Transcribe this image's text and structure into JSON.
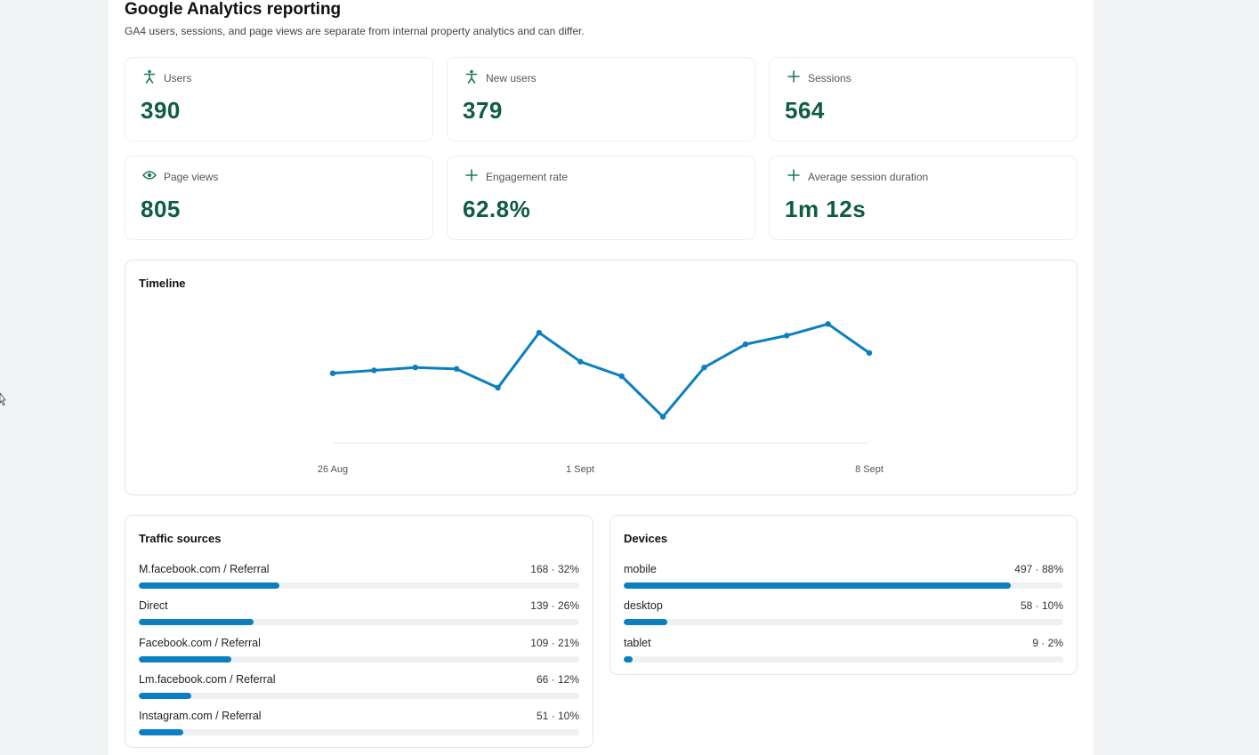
{
  "header": {
    "title": "Google Analytics reporting",
    "subtitle": "GA4 users, sessions, and page views are separate from internal property analytics and can differ."
  },
  "kpis": [
    {
      "label": "Users",
      "value": "390",
      "icon": "person-icon"
    },
    {
      "label": "New users",
      "value": "379",
      "icon": "person-icon"
    },
    {
      "label": "Sessions",
      "value": "564",
      "icon": "plus-icon"
    },
    {
      "label": "Page views",
      "value": "805",
      "icon": "eye-icon"
    },
    {
      "label": "Engagement rate",
      "value": "62.8%",
      "icon": "plus-icon"
    },
    {
      "label": "Average session duration",
      "value": "1m 12s",
      "icon": "plus-icon"
    }
  ],
  "timeline": {
    "title": "Timeline",
    "x_ticks": [
      "26 Aug",
      "1 Sept",
      "8 Sept"
    ]
  },
  "traffic": {
    "title": "Traffic sources",
    "rows": [
      {
        "label": "M.facebook.com / Referral",
        "value": "168 · 32%",
        "pct": 32
      },
      {
        "label": "Direct",
        "value": "139 · 26%",
        "pct": 26
      },
      {
        "label": "Facebook.com / Referral",
        "value": "109 · 21%",
        "pct": 21
      },
      {
        "label": "Lm.facebook.com / Referral",
        "value": "66 · 12%",
        "pct": 12
      },
      {
        "label": "Instagram.com / Referral",
        "value": "51 · 10%",
        "pct": 10
      }
    ]
  },
  "devices": {
    "title": "Devices",
    "rows": [
      {
        "label": "mobile",
        "value": "497 · 88%",
        "pct": 88
      },
      {
        "label": "desktop",
        "value": "58 · 10%",
        "pct": 10
      },
      {
        "label": "tablet",
        "value": "9 · 2%",
        "pct": 2
      }
    ]
  },
  "chart_data": {
    "type": "line",
    "title": "Timeline",
    "x": [
      "26 Aug",
      "27 Aug",
      "28 Aug",
      "29 Aug",
      "30 Aug",
      "31 Aug",
      "1 Sept",
      "2 Sept",
      "3 Sept",
      "4 Sept",
      "5 Sept",
      "6 Sept",
      "7 Sept",
      "8 Sept"
    ],
    "x_tick_labels": [
      "26 Aug",
      "1 Sept",
      "8 Sept"
    ],
    "series": [
      {
        "values": [
          24,
          25,
          26,
          25.5,
          19,
          38,
          28,
          23,
          9,
          26,
          34,
          37,
          41,
          31
        ]
      }
    ],
    "ylim": [
      0,
      46
    ],
    "grid": false,
    "color": "#0b7fbf"
  },
  "colors": {
    "accent": "#0b7fbf",
    "kpi_value": "#0d5c46",
    "kpi_icon": "#1a7a5a"
  }
}
